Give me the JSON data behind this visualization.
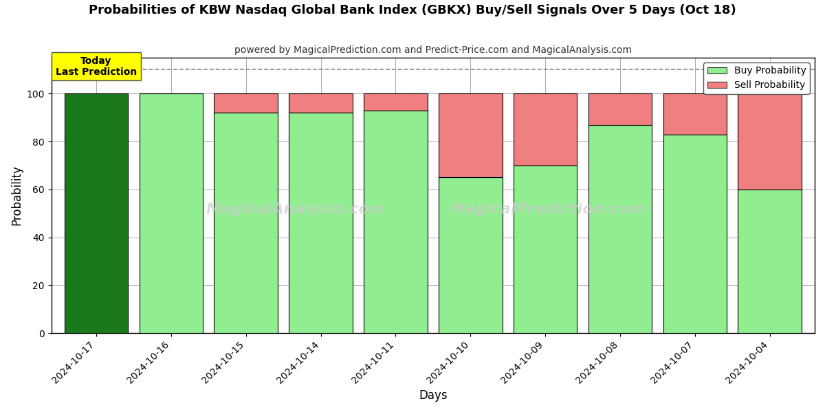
{
  "title": "Probabilities of KBW Nasdaq Global Bank Index (GBKX) Buy/Sell Signals Over 5 Days (Oct 18)",
  "subtitle": "powered by MagicalPrediction.com and Predict-Price.com and MagicalAnalysis.com",
  "xlabel": "Days",
  "ylabel": "Probability",
  "dates": [
    "2024-10-17",
    "2024-10-16",
    "2024-10-15",
    "2024-10-14",
    "2024-10-11",
    "2024-10-10",
    "2024-10-09",
    "2024-10-08",
    "2024-10-07",
    "2024-10-04"
  ],
  "buy_probs": [
    100,
    100,
    92,
    92,
    93,
    65,
    70,
    87,
    83,
    60
  ],
  "sell_probs": [
    0,
    0,
    8,
    8,
    7,
    35,
    30,
    13,
    17,
    40
  ],
  "today_bar_color": "#1a7a1a",
  "buy_bar_color": "#90ee90",
  "sell_bar_color": "#f08080",
  "today_label_bg": "#ffff00",
  "today_label_text": "Today\nLast Prediction",
  "legend_buy": "Buy Probability",
  "legend_sell": "Sell Probability",
  "ylim": [
    0,
    115
  ],
  "yticks": [
    0,
    20,
    40,
    60,
    80,
    100
  ],
  "dashed_line_y": 110,
  "watermark1": "MagicalAnalysis.com",
  "watermark2": "MagicalPrediction.com",
  "bar_edge_color": "#000000",
  "bar_linewidth": 0.8,
  "grid_color": "#aaaaaa",
  "background_color": "#ffffff",
  "bar_width": 0.85
}
